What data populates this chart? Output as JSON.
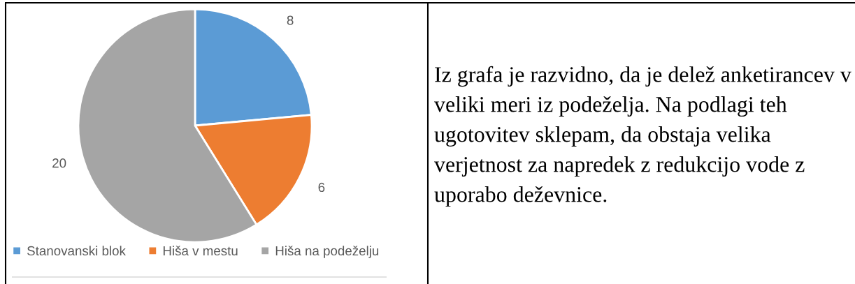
{
  "chart_data": [
    {
      "type": "pie",
      "categories": [
        "Stanovanski blok",
        "Hiša v mestu",
        "Hiša na podeželju"
      ],
      "values": [
        8,
        6,
        20
      ],
      "colors": [
        "#5b9bd5",
        "#ed7d31",
        "#a5a5a5"
      ],
      "data_labels": true,
      "legend": "bottom"
    },
    {
      "type": "other",
      "annotations": [
        "Iz grafa je razvidno, da je delež anketirancev v veliki meri iz podeželja. Na podlagi teh ugotovitev sklepam, da obstaja velika verjetnost za napredek z redukcijo vode z uporabo deževnice."
      ]
    }
  ]
}
